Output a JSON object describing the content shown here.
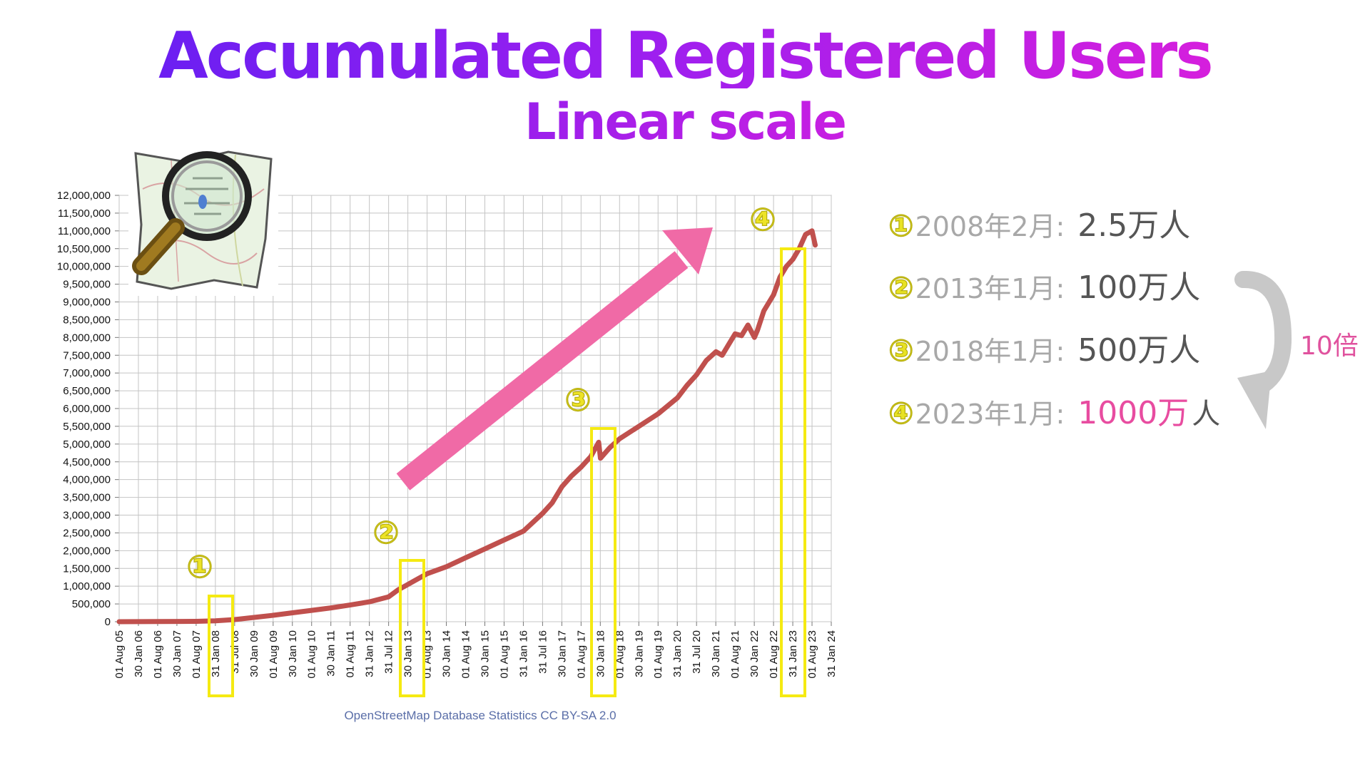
{
  "page": {
    "title": "Accumulated Registered Users",
    "subtitle": "Linear scale",
    "source": "OpenStreetMap Database Statistics  CC BY-SA 2.0",
    "multiplier_label": "10倍"
  },
  "colors": {
    "line": "#c0504d",
    "arrow": "#f06aa6",
    "highlight_box": "#f5ea12",
    "title_start": "#5b1ff2",
    "title_end": "#e51fd8",
    "accent_pink": "#e84ca0"
  },
  "annotations": [
    {
      "num": "①",
      "date": "2008年2月:",
      "value": "2.5万人",
      "highlight": false
    },
    {
      "num": "②",
      "date": "2013年1月:",
      "value": "100万人",
      "highlight": false
    },
    {
      "num": "③",
      "date": "2018年1月:",
      "value": "500万人",
      "highlight": false
    },
    {
      "num": "④",
      "date": "2023年1月:",
      "value": "1000万",
      "value_suffix": "人",
      "highlight": true
    }
  ],
  "chart_data": {
    "type": "line",
    "title": "",
    "xlabel": "",
    "ylabel": "",
    "ylim": [
      0,
      12000000
    ],
    "y_ticks": [
      "0",
      "500,000",
      "1,000,000",
      "1,500,000",
      "2,000,000",
      "2,500,000",
      "3,000,000",
      "3,500,000",
      "4,000,000",
      "4,500,000",
      "5,000,000",
      "5,500,000",
      "6,000,000",
      "6,500,000",
      "7,000,000",
      "7,500,000",
      "8,000,000",
      "8,500,000",
      "9,000,000",
      "9,500,000",
      "10,000,000",
      "10,500,000",
      "11,000,000",
      "11,500,000",
      "12,000,000"
    ],
    "x_ticks": [
      "01 Aug 05",
      "30 Jan 06",
      "01 Aug 06",
      "30 Jan 07",
      "01 Aug 07",
      "31 Jan 08",
      "31 Jul 08",
      "30 Jan 09",
      "01 Aug 09",
      "30 Jan 10",
      "01 Aug 10",
      "30 Jan 11",
      "01 Aug 11",
      "31 Jan 12",
      "31 Jul 12",
      "30 Jan 13",
      "01 Aug 13",
      "30 Jan 14",
      "01 Aug 14",
      "30 Jan 15",
      "01 Aug 15",
      "31 Jan 16",
      "31 Jul 16",
      "30 Jan 17",
      "01 Aug 17",
      "30 Jan 18",
      "01 Aug 18",
      "30 Jan 19",
      "01 Aug 19",
      "31 Jan 20",
      "31 Jul 20",
      "30 Jan 21",
      "01 Aug 21",
      "30 Jan 22",
      "01 Aug 22",
      "31 Jan 23",
      "01 Aug 23",
      "31 Jan 24"
    ],
    "grid": true,
    "series": [
      {
        "x": [
          "2005-08-01",
          "2006-08-01",
          "2007-08-01",
          "2008-02-01",
          "2008-08-01",
          "2009-02-01",
          "2009-08-01",
          "2010-02-01",
          "2010-08-01",
          "2011-02-01",
          "2011-08-01",
          "2012-02-01",
          "2012-08-01",
          "2012-11-01",
          "2013-01-01",
          "2013-04-01",
          "2013-08-01",
          "2014-02-01",
          "2014-08-01",
          "2015-02-01",
          "2015-08-01",
          "2016-02-01",
          "2016-08-01",
          "2016-11-01",
          "2017-02-01",
          "2017-05-01",
          "2017-08-01",
          "2017-11-01",
          "2018-01-15",
          "2018-02-01",
          "2018-05-01",
          "2018-08-01",
          "2019-02-01",
          "2019-08-01",
          "2020-02-01",
          "2020-05-01",
          "2020-08-01",
          "2020-11-01",
          "2021-02-01",
          "2021-04-01",
          "2021-06-01",
          "2021-08-01",
          "2021-10-01",
          "2021-12-01",
          "2022-02-01",
          "2022-03-01",
          "2022-05-01",
          "2022-08-01",
          "2022-10-01",
          "2022-12-01",
          "2023-02-01",
          "2023-04-01",
          "2023-06-01",
          "2023-08-01",
          "2023-09-01"
        ],
        "values": [
          0,
          5000,
          10000,
          25000,
          60000,
          120000,
          180000,
          250000,
          320000,
          390000,
          470000,
          560000,
          700000,
          900000,
          1000000,
          1150000,
          1350000,
          1550000,
          1800000,
          2050000,
          2300000,
          2550000,
          3050000,
          3350000,
          3800000,
          4100000,
          4350000,
          4650000,
          5050000,
          4600000,
          4900000,
          5150000,
          5500000,
          5850000,
          6300000,
          6650000,
          6950000,
          7350000,
          7600000,
          7500000,
          7800000,
          8100000,
          8050000,
          8350000,
          8000000,
          8200000,
          8750000,
          9200000,
          9700000,
          10000000,
          10200000,
          10500000,
          10900000,
          11000000,
          10600000
        ]
      }
    ],
    "annotations": [
      "①",
      "②",
      "③",
      "④"
    ]
  }
}
